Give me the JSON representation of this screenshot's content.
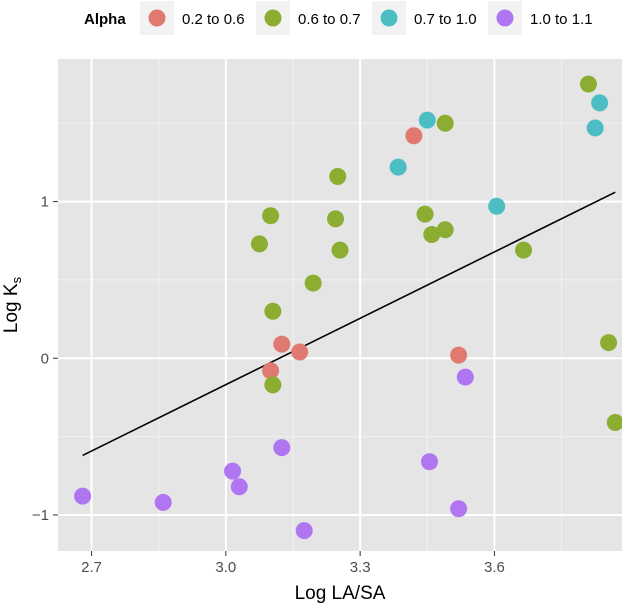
{
  "chart_data": {
    "type": "scatter",
    "xlabel": "Log LA/SA",
    "ylabel": "Log K",
    "ylabel_subscript": "s",
    "xlim": [
      2.625,
      3.885
    ],
    "ylim": [
      -1.23,
      1.91
    ],
    "xticks": [
      2.7,
      3.0,
      3.3,
      3.6
    ],
    "xtick_labels": [
      "2.7",
      "3.0",
      "3.3",
      "3.6"
    ],
    "yticks": [
      -1,
      0,
      1
    ],
    "ytick_labels": [
      "−1",
      "0",
      "1"
    ],
    "grid": true,
    "legend": {
      "title": "Alpha",
      "placement": "top"
    },
    "series": [
      {
        "name": "0.2 to 0.6",
        "color": "#e07a70",
        "points": [
          [
            3.1,
            -0.08
          ],
          [
            3.125,
            0.09
          ],
          [
            3.165,
            0.04
          ],
          [
            3.42,
            1.42
          ],
          [
            3.52,
            0.02
          ]
        ]
      },
      {
        "name": "0.6 to 0.7",
        "color": "#8aad32",
        "points": [
          [
            3.075,
            0.73
          ],
          [
            3.1,
            0.91
          ],
          [
            3.105,
            0.3
          ],
          [
            3.105,
            -0.17
          ],
          [
            3.195,
            0.48
          ],
          [
            3.245,
            0.89
          ],
          [
            3.25,
            1.16
          ],
          [
            3.255,
            0.69
          ],
          [
            3.445,
            0.92
          ],
          [
            3.46,
            0.79
          ],
          [
            3.49,
            0.82
          ],
          [
            3.49,
            1.5
          ],
          [
            3.665,
            0.69
          ],
          [
            3.81,
            1.75
          ],
          [
            3.855,
            0.1
          ],
          [
            3.87,
            -0.41
          ]
        ]
      },
      {
        "name": "0.7 to 1.0",
        "color": "#4dbdc4",
        "points": [
          [
            3.385,
            1.22
          ],
          [
            3.45,
            1.52
          ],
          [
            3.605,
            0.97
          ],
          [
            3.825,
            1.47
          ],
          [
            3.835,
            1.63
          ]
        ]
      },
      {
        "name": "1.0 to 1.1",
        "color": "#b075f0",
        "points": [
          [
            2.68,
            -0.88
          ],
          [
            2.86,
            -0.92
          ],
          [
            3.015,
            -0.72
          ],
          [
            3.03,
            -0.82
          ],
          [
            3.125,
            -0.57
          ],
          [
            3.175,
            -1.1
          ],
          [
            3.455,
            -0.66
          ],
          [
            3.52,
            -0.96
          ],
          [
            3.535,
            -0.12
          ]
        ]
      }
    ],
    "fit_line": {
      "color": "#000000",
      "points": [
        [
          2.68,
          -0.62
        ],
        [
          3.87,
          1.06
        ]
      ]
    }
  }
}
